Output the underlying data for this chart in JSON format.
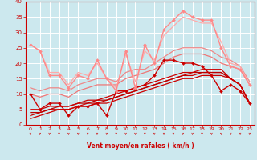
{
  "xlabel": "Vent moyen/en rafales ( km/h )",
  "xlim": [
    -0.5,
    23.5
  ],
  "ylim": [
    0,
    40
  ],
  "xticks": [
    0,
    1,
    2,
    3,
    4,
    5,
    6,
    7,
    8,
    9,
    10,
    11,
    12,
    13,
    14,
    15,
    16,
    17,
    18,
    19,
    20,
    21,
    22,
    23
  ],
  "yticks": [
    0,
    5,
    10,
    15,
    20,
    25,
    30,
    35,
    40
  ],
  "bg_color": "#cce8ee",
  "grid_color": "#ffffff",
  "lines": [
    {
      "x": [
        0,
        1,
        2,
        3,
        4,
        5,
        6,
        7,
        8,
        9,
        10,
        11,
        12,
        13,
        14,
        15,
        16,
        17,
        18,
        19,
        20,
        21,
        22,
        23
      ],
      "y": [
        10,
        5,
        7,
        7,
        3,
        6,
        6,
        7,
        3,
        11,
        11,
        12,
        13,
        16,
        21,
        21,
        20,
        20,
        19,
        16,
        11,
        13,
        11,
        7
      ],
      "color": "#cc0000",
      "lw": 1.0,
      "marker": "D",
      "ms": 2.0,
      "zorder": 5
    },
    {
      "x": [
        0,
        1,
        2,
        3,
        4,
        5,
        6,
        7,
        8,
        9,
        10,
        11,
        12,
        13,
        14,
        15,
        16,
        17,
        18,
        19,
        20,
        21,
        22,
        23
      ],
      "y": [
        2,
        3,
        4,
        5,
        5,
        6,
        6,
        7,
        7,
        8,
        9,
        10,
        11,
        12,
        13,
        14,
        15,
        15,
        16,
        16,
        16,
        15,
        13,
        7
      ],
      "color": "#cc0000",
      "lw": 0.9,
      "marker": null,
      "ms": 0,
      "zorder": 4
    },
    {
      "x": [
        0,
        1,
        2,
        3,
        4,
        5,
        6,
        7,
        8,
        9,
        10,
        11,
        12,
        13,
        14,
        15,
        16,
        17,
        18,
        19,
        20,
        21,
        22,
        23
      ],
      "y": [
        3,
        4,
        5,
        5,
        5,
        6,
        7,
        7,
        8,
        9,
        10,
        11,
        12,
        13,
        14,
        15,
        16,
        16,
        17,
        17,
        17,
        15,
        13,
        7
      ],
      "color": "#cc0000",
      "lw": 0.9,
      "marker": null,
      "ms": 0,
      "zorder": 4
    },
    {
      "x": [
        0,
        1,
        2,
        3,
        4,
        5,
        6,
        7,
        8,
        9,
        10,
        11,
        12,
        13,
        14,
        15,
        16,
        17,
        18,
        19,
        20,
        21,
        22,
        23
      ],
      "y": [
        4,
        4,
        5,
        6,
        6,
        7,
        7,
        8,
        8,
        9,
        10,
        11,
        12,
        13,
        14,
        15,
        16,
        17,
        17,
        17,
        17,
        15,
        13,
        7
      ],
      "color": "#bb0000",
      "lw": 0.9,
      "marker": null,
      "ms": 0,
      "zorder": 4
    },
    {
      "x": [
        0,
        1,
        2,
        3,
        4,
        5,
        6,
        7,
        8,
        9,
        10,
        11,
        12,
        13,
        14,
        15,
        16,
        17,
        18,
        19,
        20,
        21,
        22,
        23
      ],
      "y": [
        5,
        5,
        6,
        6,
        6,
        7,
        8,
        8,
        9,
        10,
        11,
        12,
        13,
        14,
        15,
        16,
        17,
        17,
        18,
        18,
        18,
        15,
        13,
        7
      ],
      "color": "#cc0000",
      "lw": 0.9,
      "marker": null,
      "ms": 0,
      "zorder": 4
    },
    {
      "x": [
        0,
        1,
        2,
        3,
        4,
        5,
        6,
        7,
        8,
        9,
        10,
        11,
        12,
        13,
        14,
        15,
        16,
        17,
        18,
        19,
        20,
        21,
        22,
        23
      ],
      "y": [
        10,
        9,
        10,
        10,
        9,
        11,
        12,
        13,
        13,
        13,
        15,
        16,
        17,
        18,
        20,
        22,
        23,
        23,
        23,
        22,
        20,
        19,
        18,
        13
      ],
      "color": "#ee7777",
      "lw": 0.9,
      "marker": null,
      "ms": 0,
      "zorder": 3
    },
    {
      "x": [
        0,
        1,
        2,
        3,
        4,
        5,
        6,
        7,
        8,
        9,
        10,
        11,
        12,
        13,
        14,
        15,
        16,
        17,
        18,
        19,
        20,
        21,
        22,
        23
      ],
      "y": [
        12,
        11,
        12,
        12,
        11,
        13,
        14,
        15,
        15,
        14,
        17,
        18,
        18,
        20,
        22,
        24,
        25,
        25,
        25,
        24,
        22,
        21,
        19,
        14
      ],
      "color": "#ee8888",
      "lw": 0.9,
      "marker": null,
      "ms": 0,
      "zorder": 3
    },
    {
      "x": [
        0,
        1,
        2,
        3,
        4,
        5,
        6,
        7,
        8,
        9,
        10,
        11,
        12,
        13,
        14,
        15,
        16,
        17,
        18,
        19,
        20,
        21,
        22,
        23
      ],
      "y": [
        26,
        24,
        16,
        16,
        12,
        16,
        15,
        21,
        15,
        11,
        24,
        12,
        26,
        20,
        31,
        34,
        37,
        35,
        34,
        34,
        25,
        19,
        18,
        13
      ],
      "color": "#ff8888",
      "lw": 1.0,
      "marker": "D",
      "ms": 2.0,
      "zorder": 5
    },
    {
      "x": [
        0,
        1,
        2,
        3,
        4,
        5,
        6,
        7,
        8,
        9,
        10,
        11,
        12,
        13,
        14,
        15,
        16,
        17,
        18,
        19,
        20,
        21,
        22,
        23
      ],
      "y": [
        26,
        24,
        17,
        17,
        13,
        17,
        16,
        20,
        15,
        12,
        23,
        14,
        24,
        21,
        29,
        32,
        35,
        34,
        33,
        33,
        27,
        20,
        19,
        13
      ],
      "color": "#ffaaaa",
      "lw": 0.9,
      "marker": null,
      "ms": 0,
      "zorder": 3
    }
  ]
}
